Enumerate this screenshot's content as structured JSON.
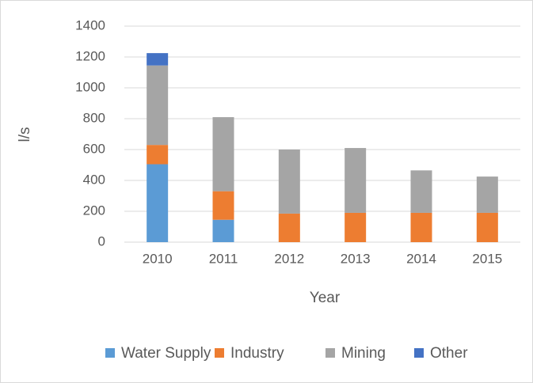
{
  "chart_data": {
    "type": "stacked_bar",
    "categories": [
      "2010",
      "2011",
      "2012",
      "2013",
      "2014",
      "2015"
    ],
    "series": [
      {
        "name": "Water Supply",
        "color": "#5b9bd5",
        "values": [
          505,
          145,
          0,
          0,
          0,
          0
        ]
      },
      {
        "name": "Industry",
        "color": "#ed7d31",
        "values": [
          125,
          185,
          185,
          190,
          190,
          190
        ]
      },
      {
        "name": "Mining",
        "color": "#a5a5a5",
        "values": [
          515,
          480,
          415,
          420,
          275,
          235
        ]
      },
      {
        "name": "Other",
        "color": "#4472c4",
        "values": [
          80,
          0,
          0,
          0,
          0,
          0
        ]
      }
    ],
    "x_label": "Year",
    "y_label": "l/s",
    "ylim": [
      0,
      1400
    ],
    "yticks": [
      0,
      200,
      400,
      600,
      800,
      1000,
      1200,
      1400
    ],
    "grid": true,
    "legend": "bottom"
  }
}
